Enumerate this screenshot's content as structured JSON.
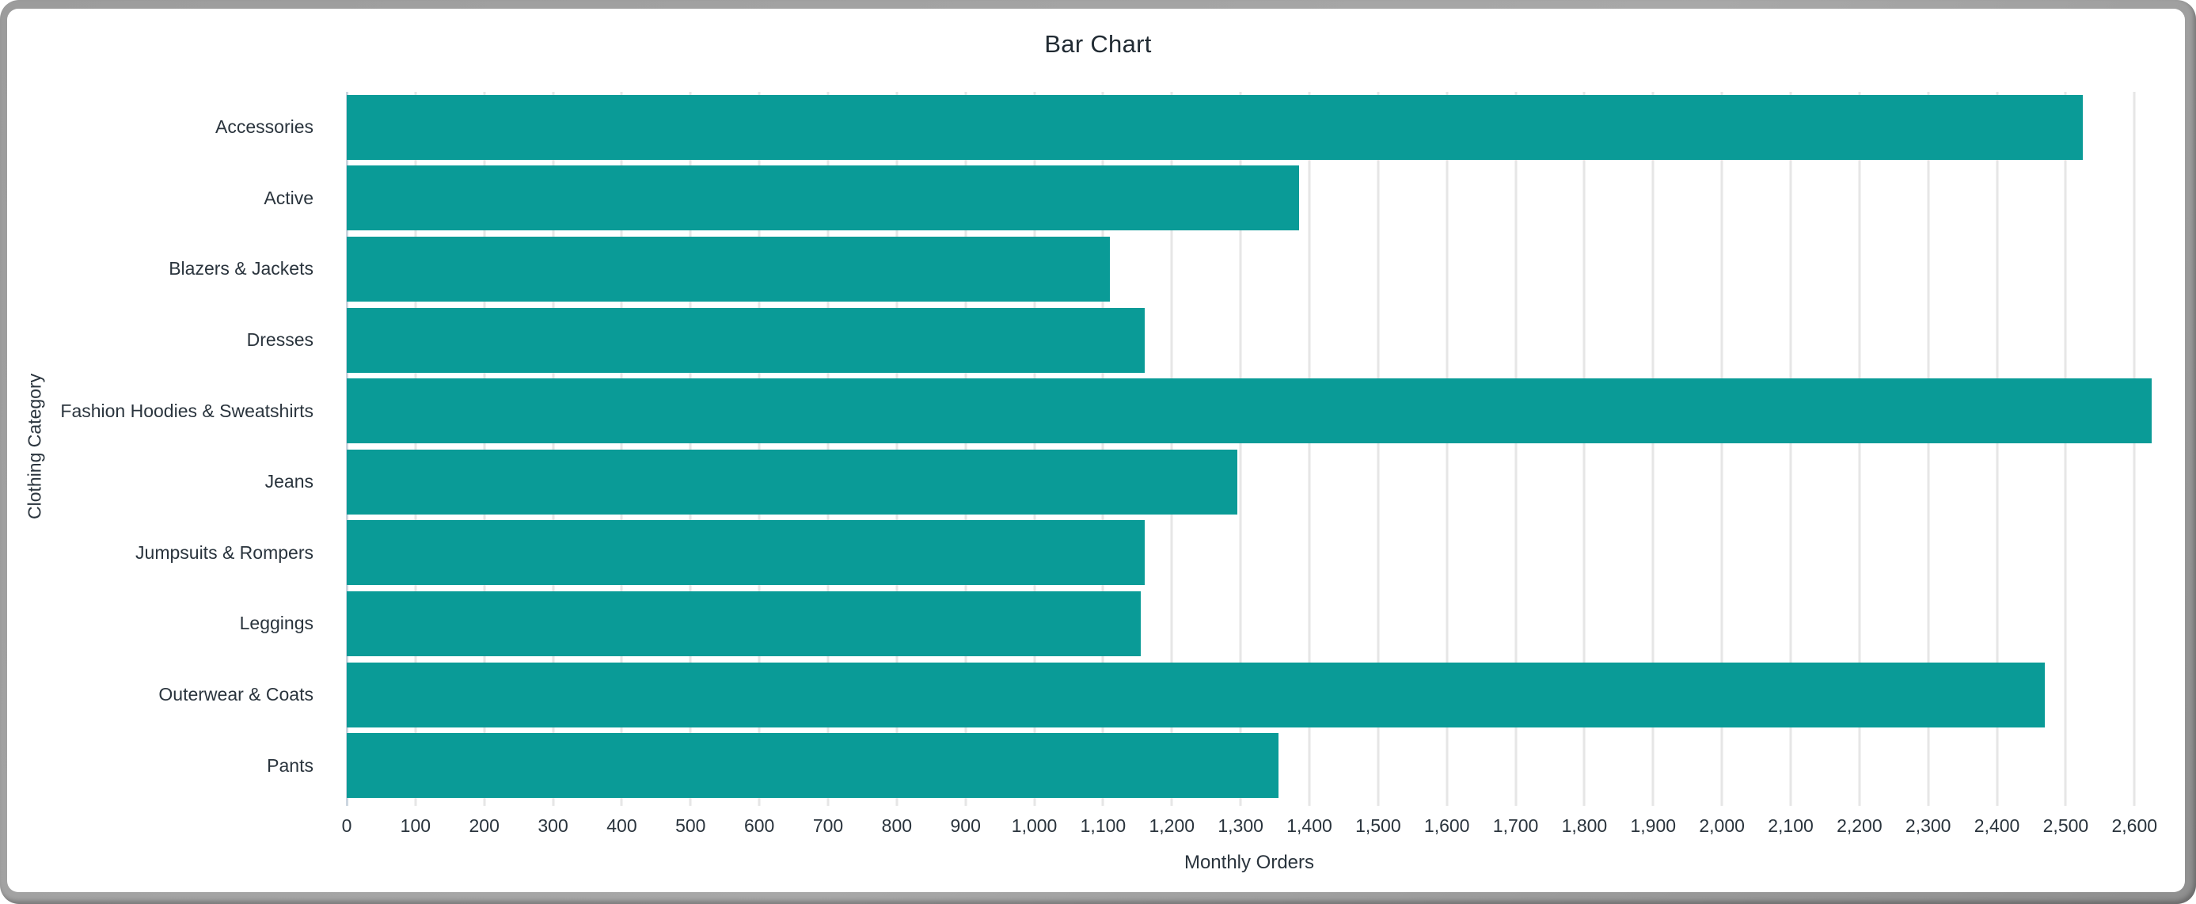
{
  "chart_data": {
    "type": "bar",
    "orientation": "horizontal",
    "title": "Bar Chart",
    "xlabel": "Monthly Orders",
    "ylabel": "Clothing Category",
    "categories": [
      "Accessories",
      "Active",
      "Blazers & Jackets",
      "Dresses",
      "Fashion Hoodies & Sweatshirts",
      "Jeans",
      "Jumpsuits & Rompers",
      "Leggings",
      "Outerwear & Coats",
      "Pants"
    ],
    "values": [
      2525,
      1385,
      1110,
      1160,
      2625,
      1295,
      1160,
      1155,
      2470,
      1355
    ],
    "xlim": [
      0,
      2625
    ],
    "xtick_interval": 100,
    "xtick_values": [
      0,
      100,
      200,
      300,
      400,
      500,
      600,
      700,
      800,
      900,
      1000,
      1100,
      1200,
      1300,
      1400,
      1500,
      1600,
      1700,
      1800,
      1900,
      2000,
      2100,
      2200,
      2300,
      2400,
      2500,
      2600
    ],
    "xtick_labels": [
      "0",
      "100",
      "200",
      "300",
      "400",
      "500",
      "600",
      "700",
      "800",
      "900",
      "1,000",
      "1,100",
      "1,200",
      "1,300",
      "1,400",
      "1,500",
      "1,600",
      "1,700",
      "1,800",
      "1,900",
      "2,000",
      "2,100",
      "2,200",
      "2,300",
      "2,400",
      "2,500",
      "2,600"
    ],
    "grid": true,
    "legend": "none",
    "colors": {
      "bar": "#0a9b97",
      "grid": "#e6e6e6",
      "baseline": "#ccd6e0",
      "text": "#2a343d",
      "title": "#212b33",
      "frame": "#a4a4a4",
      "background": "#ffffff"
    }
  }
}
